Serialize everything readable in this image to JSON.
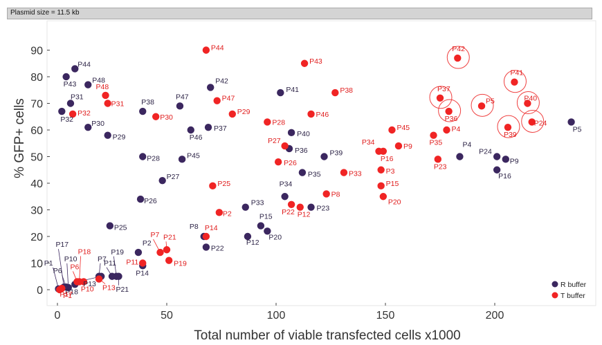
{
  "banner": {
    "text": "Plasmid size = 11.5 kb"
  },
  "colors": {
    "R": "#3b275f",
    "T": "#f02424",
    "axis": "#222222",
    "plot_border": "#e6e6e6",
    "label_R": "#2b2245",
    "label_T": "#e01c1c"
  },
  "chart_data": {
    "type": "scatter",
    "title": "",
    "xlabel": "Total number of viable transfected cells x1000",
    "ylabel": "% GFP+ cells",
    "xlim": [
      -6,
      240
    ],
    "ylim": [
      -4,
      98
    ],
    "xticks": [
      0,
      50,
      100,
      150,
      200
    ],
    "yticks": [
      0,
      10,
      20,
      30,
      40,
      50,
      60,
      70,
      80,
      90
    ],
    "grid": false,
    "legend": {
      "position": "bottom-right",
      "entries": [
        "R buffer",
        "T buffer"
      ]
    },
    "series": [
      {
        "name": "R buffer",
        "key": "R",
        "points": [
          {
            "label": "P1",
            "x": 0.5,
            "y": 0.3
          },
          {
            "label": "P2",
            "x": 37,
            "y": 14
          },
          {
            "label": "P4",
            "x": 184,
            "y": 50
          },
          {
            "label": "P5",
            "x": 235,
            "y": 63
          },
          {
            "label": "P6",
            "x": 4,
            "y": 1
          },
          {
            "label": "P7",
            "x": 19,
            "y": 5
          },
          {
            "label": "P8",
            "x": 67,
            "y": 20
          },
          {
            "label": "P9",
            "x": 205,
            "y": 49
          },
          {
            "label": "P10",
            "x": 5,
            "y": 0.8
          },
          {
            "label": "P11",
            "x": 25,
            "y": 5
          },
          {
            "label": "P12",
            "x": 87,
            "y": 20
          },
          {
            "label": "P13",
            "x": 20,
            "y": 5
          },
          {
            "label": "P14",
            "x": 39,
            "y": 9
          },
          {
            "label": "P15",
            "x": 93,
            "y": 24
          },
          {
            "label": "P16",
            "x": 201,
            "y": 45
          },
          {
            "label": "P17",
            "x": 3,
            "y": 1
          },
          {
            "label": "P18",
            "x": 8,
            "y": 2
          },
          {
            "label": "P19",
            "x": 27,
            "y": 5
          },
          {
            "label": "P20",
            "x": 96,
            "y": 22
          },
          {
            "label": "P21",
            "x": 28,
            "y": 5
          },
          {
            "label": "P22",
            "x": 68,
            "y": 16
          },
          {
            "label": "P23",
            "x": 116,
            "y": 31
          },
          {
            "label": "P24",
            "x": 201,
            "y": 50
          },
          {
            "label": "P25",
            "x": 24,
            "y": 24
          },
          {
            "label": "P26",
            "x": 38,
            "y": 34
          },
          {
            "label": "P27",
            "x": 48,
            "y": 41
          },
          {
            "label": "P28",
            "x": 39,
            "y": 50
          },
          {
            "label": "P29",
            "x": 23,
            "y": 58
          },
          {
            "label": "P30",
            "x": 14,
            "y": 61
          },
          {
            "label": "P31",
            "x": 6,
            "y": 70
          },
          {
            "label": "P32",
            "x": 2,
            "y": 67
          },
          {
            "label": "P33",
            "x": 86,
            "y": 31
          },
          {
            "label": "P34",
            "x": 104,
            "y": 35
          },
          {
            "label": "P35",
            "x": 112,
            "y": 44
          },
          {
            "label": "P36",
            "x": 106,
            "y": 53
          },
          {
            "label": "P37",
            "x": 69,
            "y": 61
          },
          {
            "label": "P38",
            "x": 39,
            "y": 67
          },
          {
            "label": "P39",
            "x": 122,
            "y": 50
          },
          {
            "label": "P40",
            "x": 107,
            "y": 59
          },
          {
            "label": "P41",
            "x": 102,
            "y": 74
          },
          {
            "label": "P42",
            "x": 70,
            "y": 76
          },
          {
            "label": "P43",
            "x": 4,
            "y": 80
          },
          {
            "label": "P44",
            "x": 8,
            "y": 83
          },
          {
            "label": "P45",
            "x": 57,
            "y": 49
          },
          {
            "label": "P46",
            "x": 61,
            "y": 60
          },
          {
            "label": "P47",
            "x": 56,
            "y": 69
          },
          {
            "label": "P48",
            "x": 14,
            "y": 77
          }
        ]
      },
      {
        "name": "T buffer",
        "key": "T",
        "points": [
          {
            "label": "P1",
            "x": 1,
            "y": 0
          },
          {
            "label": "P2",
            "x": 74,
            "y": 29
          },
          {
            "label": "P3",
            "x": 148,
            "y": 45
          },
          {
            "label": "P4",
            "x": 178,
            "y": 60
          },
          {
            "label": "P5",
            "x": 194,
            "y": 69
          },
          {
            "label": "P6",
            "x": 9,
            "y": 3
          },
          {
            "label": "P7",
            "x": 47,
            "y": 14
          },
          {
            "label": "P8",
            "x": 123,
            "y": 36
          },
          {
            "label": "P9",
            "x": 156,
            "y": 54
          },
          {
            "label": "P10",
            "x": 12,
            "y": 3
          },
          {
            "label": "P11",
            "x": 39,
            "y": 10
          },
          {
            "label": "P12",
            "x": 111,
            "y": 31
          },
          {
            "label": "P13",
            "x": 19,
            "y": 4
          },
          {
            "label": "P14",
            "x": 68,
            "y": 20
          },
          {
            "label": "P15",
            "x": 148,
            "y": 39
          },
          {
            "label": "P16",
            "x": 149,
            "y": 52
          },
          {
            "label": "P17",
            "x": 2,
            "y": 0.5
          },
          {
            "label": "P18",
            "x": 10,
            "y": 3
          },
          {
            "label": "P19",
            "x": 51,
            "y": 11
          },
          {
            "label": "P20",
            "x": 149,
            "y": 35
          },
          {
            "label": "P21",
            "x": 50,
            "y": 15
          },
          {
            "label": "P22",
            "x": 107,
            "y": 32
          },
          {
            "label": "P23",
            "x": 174,
            "y": 49
          },
          {
            "label": "P24",
            "x": 217,
            "y": 63
          },
          {
            "label": "P25",
            "x": 71,
            "y": 39
          },
          {
            "label": "P26",
            "x": 101,
            "y": 48
          },
          {
            "label": "P27",
            "x": 104,
            "y": 54
          },
          {
            "label": "P28",
            "x": 96,
            "y": 63
          },
          {
            "label": "P29",
            "x": 80,
            "y": 66
          },
          {
            "label": "P30",
            "x": 45,
            "y": 65
          },
          {
            "label": "P31",
            "x": 23,
            "y": 70
          },
          {
            "label": "P32",
            "x": 7,
            "y": 66
          },
          {
            "label": "P33",
            "x": 131,
            "y": 44
          },
          {
            "label": "P34",
            "x": 147,
            "y": 52
          },
          {
            "label": "P35",
            "x": 172,
            "y": 58
          },
          {
            "label": "P36",
            "x": 179,
            "y": 67
          },
          {
            "label": "P37",
            "x": 175,
            "y": 72
          },
          {
            "label": "P38",
            "x": 127,
            "y": 74
          },
          {
            "label": "P39",
            "x": 206,
            "y": 61
          },
          {
            "label": "P40",
            "x": 215,
            "y": 70
          },
          {
            "label": "P41",
            "x": 209,
            "y": 78
          },
          {
            "label": "P42",
            "x": 183,
            "y": 87
          },
          {
            "label": "P43",
            "x": 113,
            "y": 85
          },
          {
            "label": "P44",
            "x": 68,
            "y": 90
          },
          {
            "label": "P45",
            "x": 153,
            "y": 60
          },
          {
            "label": "P46",
            "x": 116,
            "y": 66
          },
          {
            "label": "P47",
            "x": 73,
            "y": 71
          },
          {
            "label": "P48",
            "x": 22,
            "y": 73
          }
        ]
      }
    ],
    "highlighted": [
      "P5",
      "P24",
      "P36",
      "P37",
      "P39",
      "P40",
      "P41",
      "P42"
    ]
  }
}
